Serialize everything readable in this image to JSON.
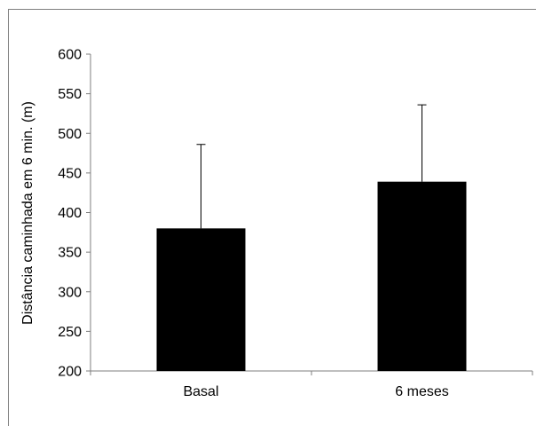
{
  "chart_data": {
    "type": "bar",
    "categories": [
      "Basal",
      "6 meses"
    ],
    "values": [
      380,
      439
    ],
    "error_upper": [
      486,
      536
    ],
    "ylim": [
      200,
      600
    ],
    "yticks": [
      200,
      250,
      300,
      350,
      400,
      450,
      500,
      550,
      600
    ],
    "ytick_labels": [
      "200",
      "250",
      "300",
      "350",
      "400",
      "450",
      "500",
      "550",
      "600"
    ],
    "title": "",
    "xlabel": "",
    "ylabel": "Distância caminhada em 6 min. (m)",
    "grid": false,
    "legend": "none",
    "bar_color": "#000000",
    "axis_color": "#7f7f7f"
  }
}
